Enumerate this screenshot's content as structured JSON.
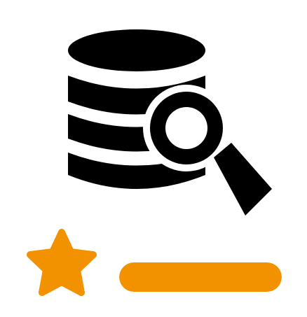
{
  "icons": {
    "database": "database-icon",
    "magnifier": "magnifier-icon",
    "star": "star-icon"
  },
  "colors": {
    "icon": "#000000",
    "accent": "#f39200",
    "background": "#ffffff"
  },
  "rating": {
    "stars": 1
  },
  "progress": {
    "fraction": 1.0
  }
}
